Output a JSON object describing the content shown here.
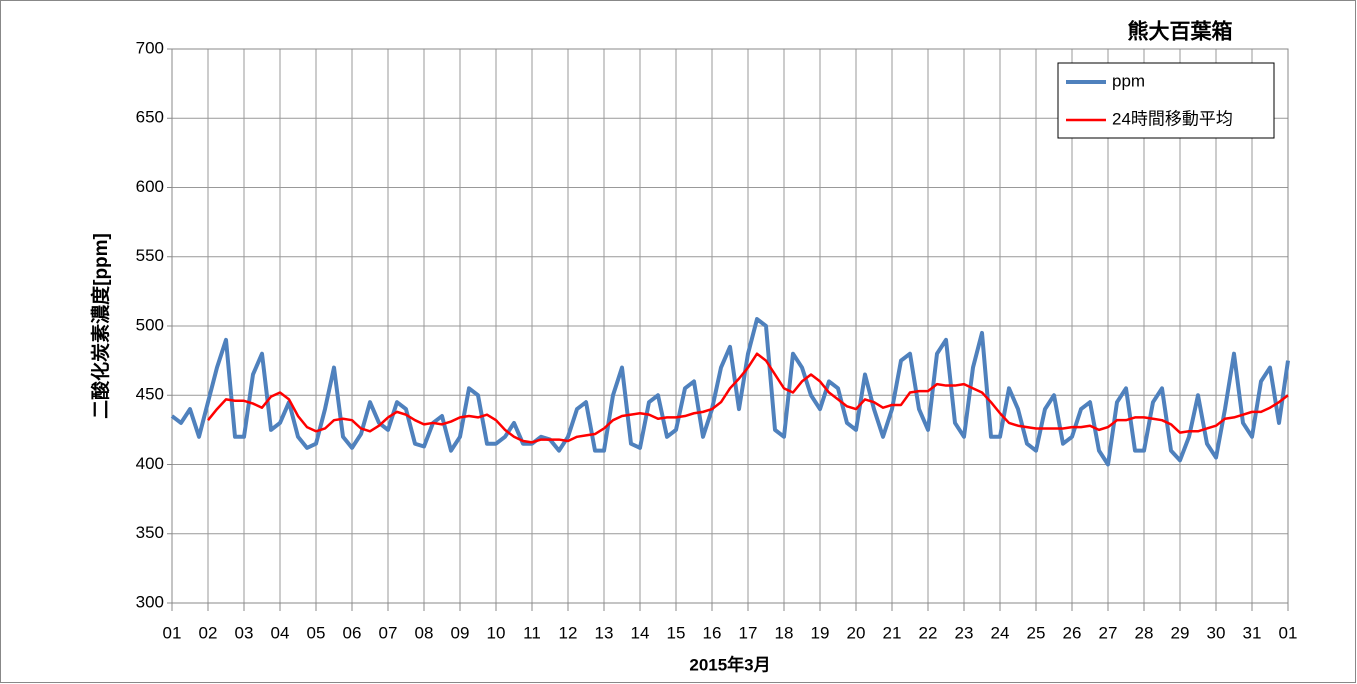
{
  "chart_data": {
    "type": "line",
    "title": "熊大百葉箱",
    "xlabel": "2015年3月",
    "ylabel": "二酸化炭素濃度[ppm]",
    "x": [
      1,
      1.25,
      1.5,
      1.75,
      2,
      2.25,
      2.5,
      2.75,
      3,
      3.25,
      3.5,
      3.75,
      4,
      4.25,
      4.5,
      4.75,
      5,
      5.25,
      5.5,
      5.75,
      6,
      6.25,
      6.5,
      6.75,
      7,
      7.25,
      7.5,
      7.75,
      8,
      8.25,
      8.5,
      8.75,
      9,
      9.25,
      9.5,
      9.75,
      10,
      10.25,
      10.5,
      10.75,
      11,
      11.25,
      11.5,
      11.75,
      12,
      12.25,
      12.5,
      12.75,
      13,
      13.25,
      13.5,
      13.75,
      14,
      14.25,
      14.5,
      14.75,
      15,
      15.25,
      15.5,
      15.75,
      16,
      16.25,
      16.5,
      16.75,
      17,
      17.25,
      17.5,
      17.75,
      18,
      18.25,
      18.5,
      18.75,
      19,
      19.25,
      19.5,
      19.75,
      20,
      20.25,
      20.5,
      20.75,
      21,
      21.25,
      21.5,
      21.75,
      22,
      22.25,
      22.5,
      22.75,
      23,
      23.25,
      23.5,
      23.75,
      24,
      24.25,
      24.5,
      24.75,
      25,
      25.25,
      25.5,
      25.75,
      26,
      26.25,
      26.5,
      26.75,
      27,
      27.25,
      27.5,
      27.75,
      28,
      28.25,
      28.5,
      28.75,
      29,
      29.25,
      29.5,
      29.75,
      30,
      30.25,
      30.5,
      30.75,
      31,
      31.25,
      31.5,
      31.75,
      32
    ],
    "series": [
      {
        "name": "ppm",
        "color": "#4f81bd",
        "values": [
          435,
          430,
          440,
          420,
          445,
          470,
          490,
          420,
          420,
          465,
          480,
          425,
          430,
          445,
          420,
          412,
          415,
          440,
          470,
          420,
          412,
          422,
          445,
          430,
          425,
          445,
          440,
          415,
          413,
          430,
          435,
          410,
          420,
          455,
          450,
          415,
          415,
          420,
          430,
          415,
          415,
          420,
          418,
          410,
          420,
          440,
          445,
          410,
          410,
          450,
          470,
          415,
          412,
          445,
          450,
          420,
          425,
          455,
          460,
          420,
          440,
          470,
          485,
          440,
          480,
          505,
          500,
          425,
          420,
          480,
          470,
          450,
          440,
          460,
          455,
          430,
          425,
          465,
          440,
          420,
          440,
          475,
          480,
          440,
          425,
          480,
          490,
          430,
          420,
          470,
          495,
          420,
          420,
          455,
          440,
          415,
          410,
          440,
          450,
          415,
          420,
          440,
          445,
          410,
          400,
          445,
          455,
          410,
          410,
          445,
          455,
          410,
          403,
          420,
          450,
          415,
          405,
          440,
          480,
          430,
          420,
          460,
          470,
          430,
          475
        ]
      },
      {
        "name": "24時間移動平均",
        "color": "#ff0000",
        "values": [
          null,
          null,
          null,
          null,
          432,
          440,
          447,
          446,
          446,
          444,
          441,
          449,
          452,
          447,
          435,
          427,
          424,
          426,
          432,
          433,
          432,
          426,
          424,
          428,
          434,
          438,
          436,
          432,
          429,
          430,
          429,
          431,
          434,
          435,
          434,
          436,
          432,
          425,
          420,
          417,
          416,
          418,
          418,
          418,
          417,
          420,
          421,
          422,
          426,
          432,
          435,
          436,
          437,
          436,
          433,
          434,
          434,
          435,
          437,
          438,
          440,
          445,
          455,
          462,
          470,
          480,
          475,
          465,
          455,
          452,
          460,
          465,
          460,
          452,
          447,
          442,
          440,
          447,
          445,
          441,
          443,
          443,
          452,
          453,
          453,
          458,
          457,
          457,
          458,
          455,
          452,
          445,
          437,
          430,
          428,
          427,
          426,
          426,
          426,
          426,
          427,
          427,
          428,
          425,
          427,
          432,
          432,
          434,
          434,
          433,
          432,
          429,
          423,
          424,
          424,
          426,
          428,
          433,
          434,
          436,
          438,
          438,
          441,
          445,
          450
        ]
      }
    ],
    "xlim": [
      1,
      32
    ],
    "xticks": [
      {
        "value": 1,
        "label": "01"
      },
      {
        "value": 2,
        "label": "02"
      },
      {
        "value": 3,
        "label": "03"
      },
      {
        "value": 4,
        "label": "04"
      },
      {
        "value": 5,
        "label": "05"
      },
      {
        "value": 6,
        "label": "06"
      },
      {
        "value": 7,
        "label": "07"
      },
      {
        "value": 8,
        "label": "08"
      },
      {
        "value": 9,
        "label": "09"
      },
      10,
      11,
      12,
      13,
      14,
      15,
      16,
      17,
      18,
      19,
      20,
      21,
      22,
      23,
      24,
      25,
      26,
      27,
      28,
      29,
      30,
      31,
      {
        "value": 32,
        "label": "01"
      }
    ],
    "ylim": [
      300,
      700
    ],
    "yticks": [
      300,
      350,
      400,
      450,
      500,
      550,
      600,
      650,
      700
    ],
    "grid": true,
    "legend": "upper right"
  }
}
